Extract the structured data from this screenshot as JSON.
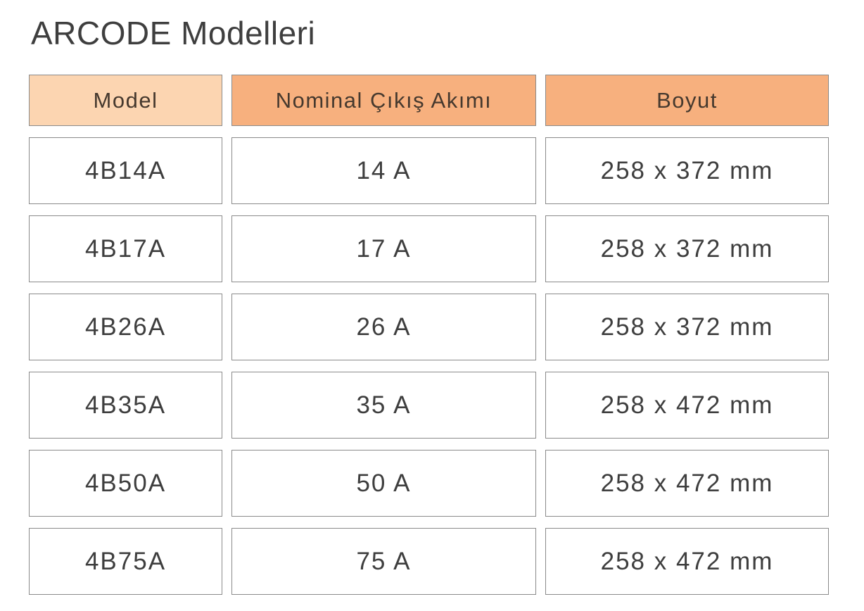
{
  "title": "ARCODE Modelleri",
  "table": {
    "columns": [
      {
        "label": "Model",
        "variant": "light"
      },
      {
        "label": "Nominal Çıkış Akımı",
        "variant": "dark"
      },
      {
        "label": "Boyut",
        "variant": "dark"
      }
    ],
    "rows": [
      {
        "model": "4B14A",
        "nominal_output_current": "14 A",
        "dimensions": "258 x 372 mm"
      },
      {
        "model": "4B17A",
        "nominal_output_current": "17 A",
        "dimensions": "258 x 372 mm"
      },
      {
        "model": "4B26A",
        "nominal_output_current": "26 A",
        "dimensions": "258 x 372 mm"
      },
      {
        "model": "4B35A",
        "nominal_output_current": "35 A",
        "dimensions": "258 x 472 mm"
      },
      {
        "model": "4B50A",
        "nominal_output_current": "50 A",
        "dimensions": "258 x 472 mm"
      },
      {
        "model": "4B75A",
        "nominal_output_current": "75 A",
        "dimensions": "258 x 472 mm"
      }
    ]
  },
  "colors": {
    "header_light_bg": "#fcd5b1",
    "header_dark_bg": "#f7b07e",
    "cell_border": "#8a8a8a",
    "text": "#3e3e3e",
    "header_text": "#46392e"
  }
}
